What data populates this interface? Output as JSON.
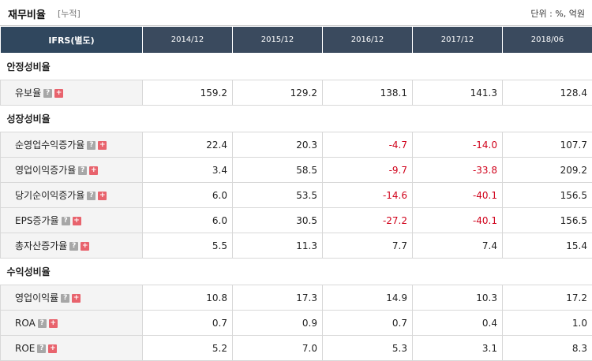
{
  "header": {
    "title": "재무비율",
    "subtitle": "[누적]",
    "unit": "단위 : %, 억원"
  },
  "table": {
    "first_col": "IFRS(별도)",
    "columns": [
      "2014/12",
      "2015/12",
      "2016/12",
      "2017/12",
      "2018/06"
    ],
    "help_icon": "?",
    "expand_icon": "+",
    "sections": [
      {
        "title": "안정성비율",
        "rows": [
          {
            "label": "유보율",
            "values": [
              "159.2",
              "129.2",
              "138.1",
              "141.3",
              "128.4"
            ]
          }
        ]
      },
      {
        "title": "성장성비율",
        "rows": [
          {
            "label": "순영업수익증가율",
            "values": [
              "22.4",
              "20.3",
              "-4.7",
              "-14.0",
              "107.7"
            ]
          },
          {
            "label": "영업이익증가율",
            "values": [
              "3.4",
              "58.5",
              "-9.7",
              "-33.8",
              "209.2"
            ]
          },
          {
            "label": "당기순이익증가율",
            "values": [
              "6.0",
              "53.5",
              "-14.6",
              "-40.1",
              "156.5"
            ]
          },
          {
            "label": "EPS증가율",
            "values": [
              "6.0",
              "30.5",
              "-27.2",
              "-40.1",
              "156.5"
            ]
          },
          {
            "label": "총자산증가율",
            "values": [
              "5.5",
              "11.3",
              "7.7",
              "7.4",
              "15.4"
            ]
          }
        ]
      },
      {
        "title": "수익성비율",
        "rows": [
          {
            "label": "영업이익률",
            "values": [
              "10.8",
              "17.3",
              "14.9",
              "10.3",
              "17.2"
            ]
          },
          {
            "label": "ROA",
            "values": [
              "0.7",
              "0.9",
              "0.7",
              "0.4",
              "1.0"
            ]
          },
          {
            "label": "ROE",
            "values": [
              "5.2",
              "7.0",
              "5.3",
              "3.1",
              "8.3"
            ]
          }
        ]
      }
    ]
  }
}
